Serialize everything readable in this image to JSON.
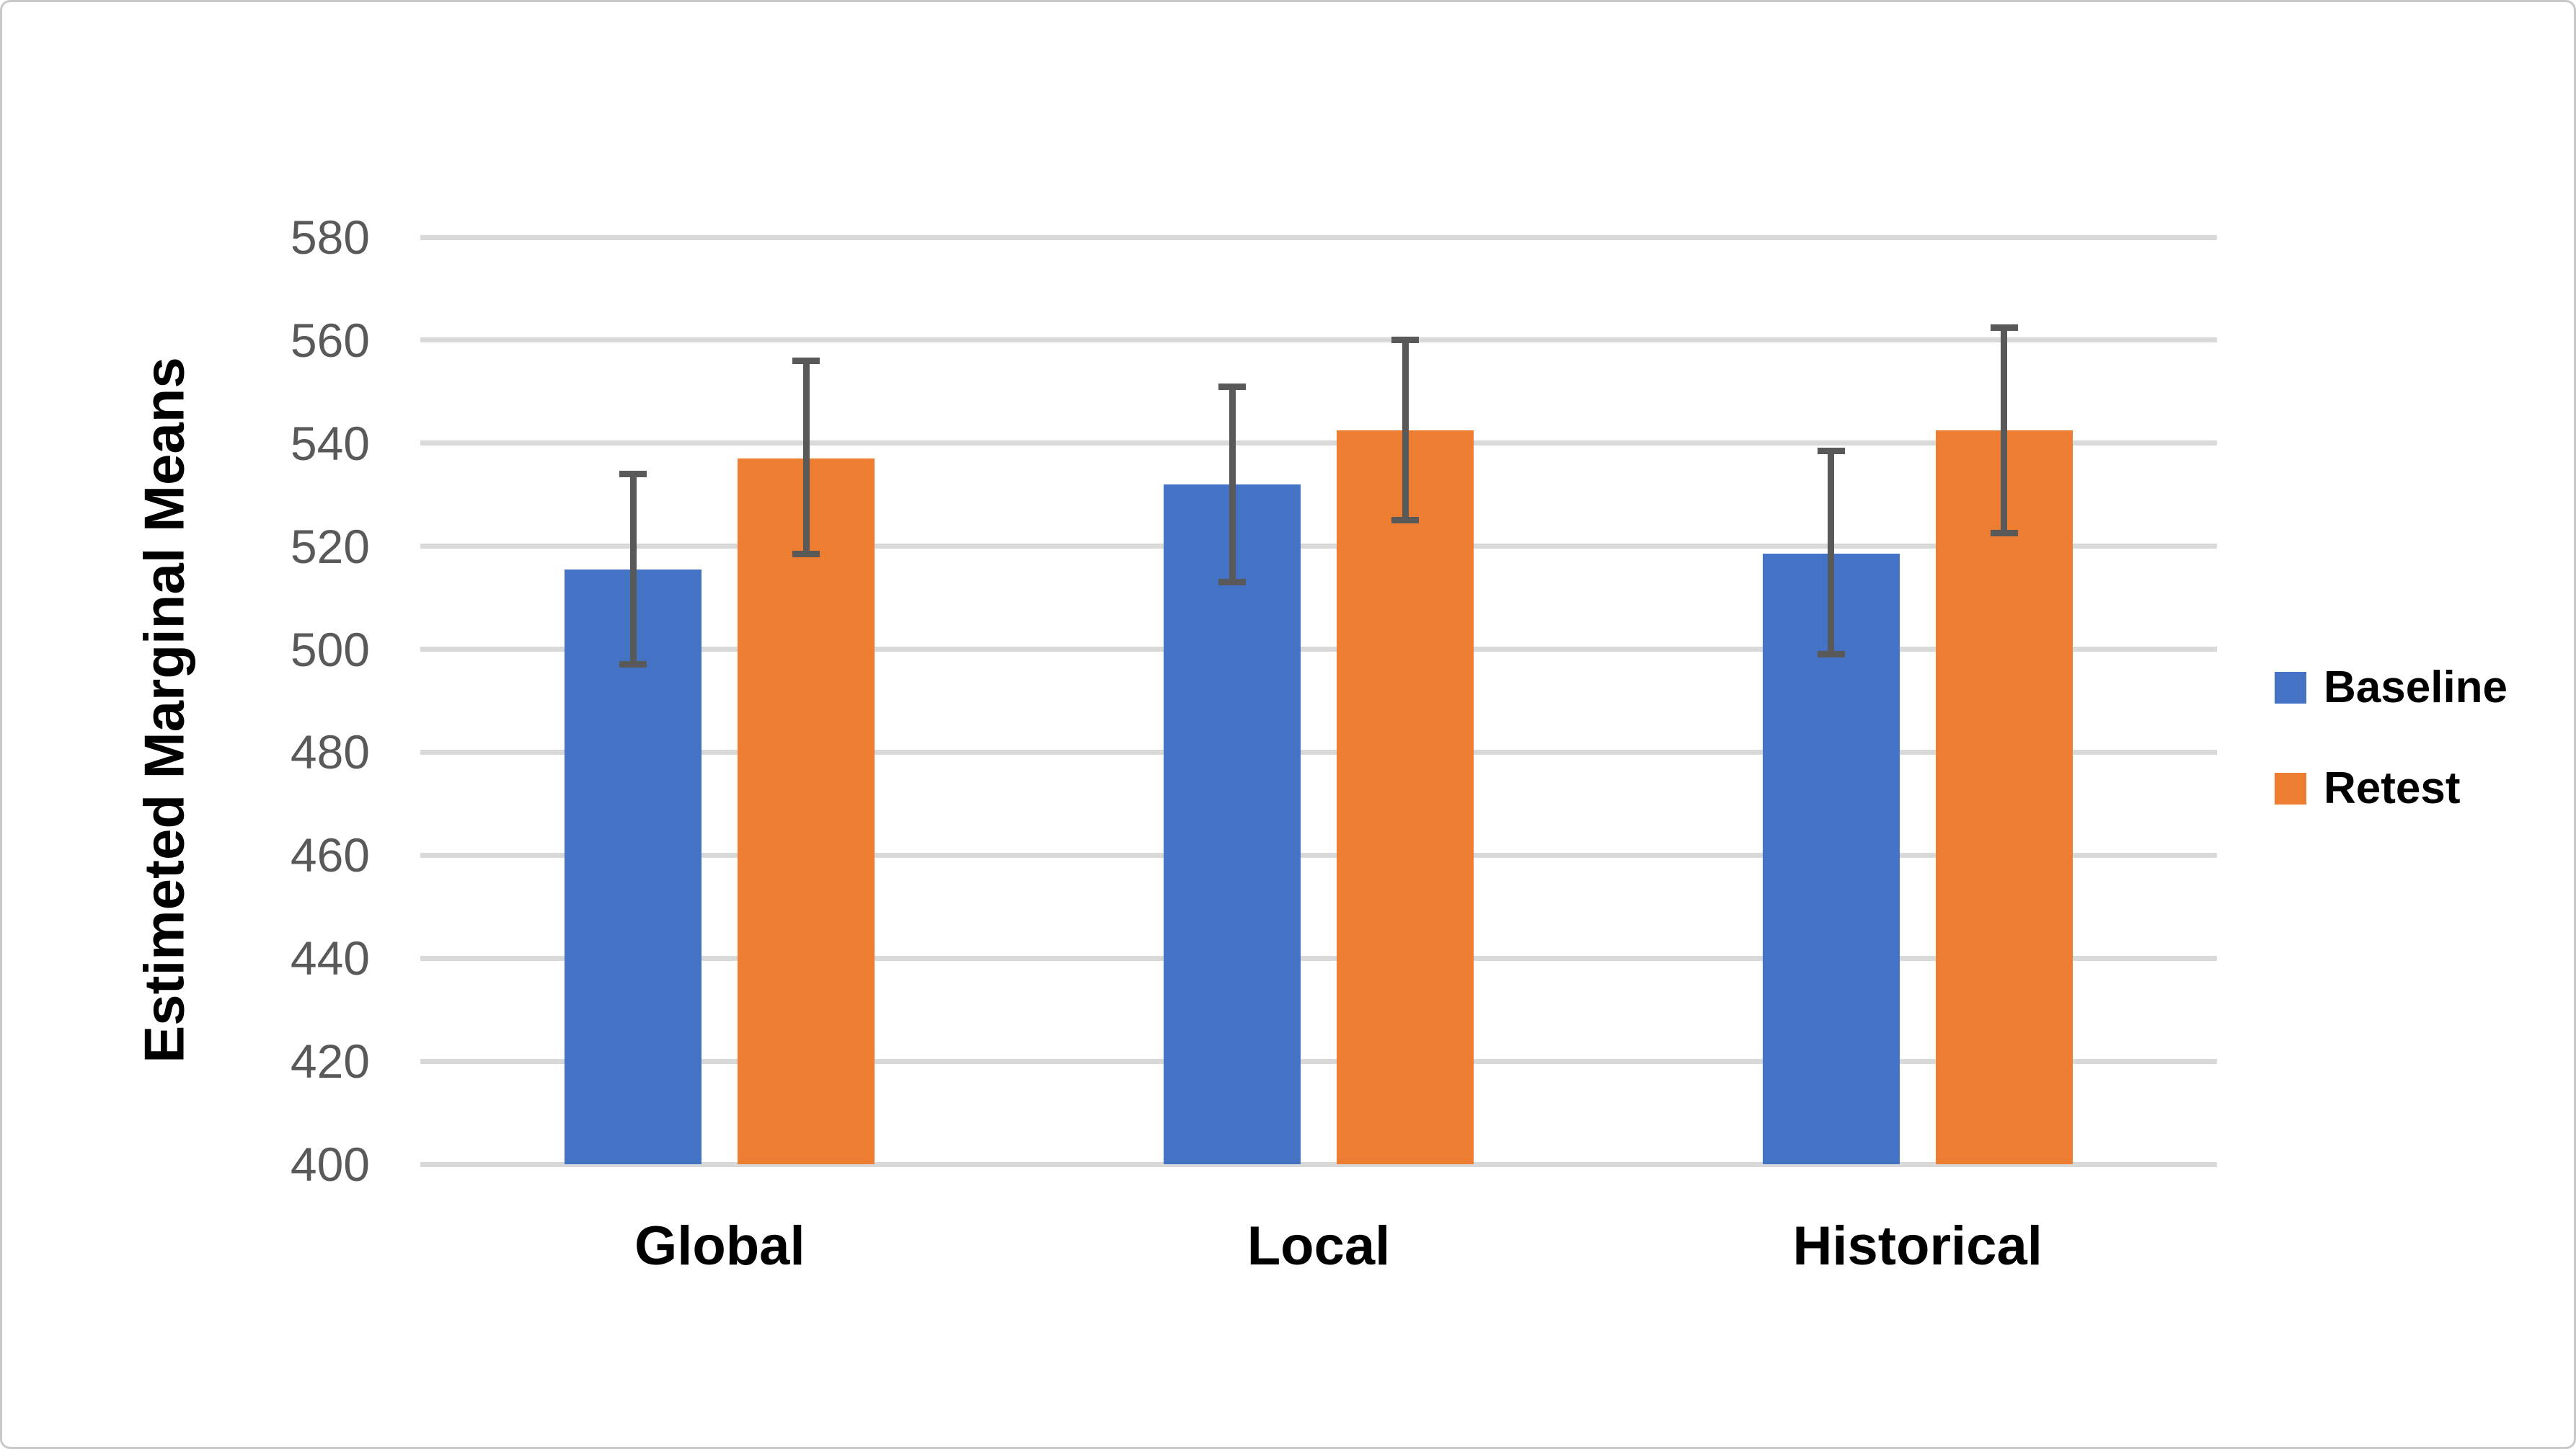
{
  "colors": {
    "gridline": "#d9d9d9",
    "axis_line": "#d9d9d9",
    "error_bar": "#595959",
    "tick_label": "#595959",
    "category_label": "#000000",
    "legend_text": "#000000",
    "baseline_series": "#4472C4",
    "retest_series": "#ED7D31",
    "background": "#ffffff",
    "frame_border": "#c9c9c9"
  },
  "chart_data": {
    "type": "bar",
    "title": "",
    "xlabel": "",
    "ylabel": "Estimeted Marginal Means",
    "categories": [
      "Global",
      "Local",
      "Historical"
    ],
    "series": [
      {
        "name": "Baseline",
        "color": "#4472C4",
        "values": [
          515.5,
          532,
          518.5
        ],
        "error_upper": [
          534,
          551,
          538.5
        ],
        "error_lower": [
          497,
          513,
          499
        ]
      },
      {
        "name": "Retest",
        "color": "#ED7D31",
        "values": [
          537,
          542.5,
          542.5
        ],
        "error_upper": [
          556,
          560,
          562.5
        ],
        "error_lower": [
          518.5,
          525,
          522.5
        ]
      }
    ],
    "yticks": [
      400,
      420,
      440,
      460,
      480,
      500,
      520,
      540,
      560,
      580
    ],
    "ylim": [
      400,
      580
    ],
    "ytick_step": 20,
    "grid": true,
    "error_bars": true,
    "legend_position": "right",
    "legend_labels": [
      "Baseline",
      "Retest"
    ]
  }
}
